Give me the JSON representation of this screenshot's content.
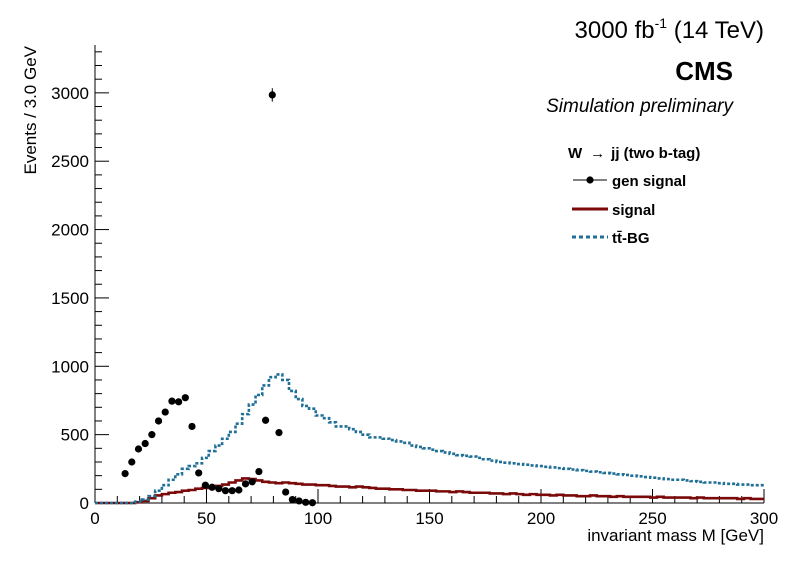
{
  "chart_data": {
    "type": "line",
    "lumi_label": {
      "main": "3000 fb",
      "sup": "-1",
      "energy": "(14 TeV)"
    },
    "experiment": "CMS",
    "subtitle": "Simulation preliminary",
    "legend_header": {
      "pre": "W",
      "arrow": "→",
      "post": "jj (two b-tag)"
    },
    "xlabel": "invariant mass M [GeV]",
    "ylabel": "Events / 3.0 GeV",
    "xlim": [
      0,
      300
    ],
    "ylim": [
      0,
      3350
    ],
    "x_ticks": [
      0,
      50,
      100,
      150,
      200,
      250,
      300
    ],
    "y_ticks": [
      0,
      500,
      1000,
      1500,
      2000,
      2500,
      3000
    ],
    "bin_width": 3,
    "legend_position": "top-right",
    "colors": {
      "gen": "#000000",
      "signal": "#7a0a0a",
      "ttbar": "#1f6f96"
    },
    "series": [
      {
        "name": "gen signal",
        "style": "markers-with-errors",
        "x": [
          13.5,
          16.5,
          19.5,
          22.5,
          25.5,
          28.5,
          31.5,
          34.5,
          37.5,
          40.5,
          43.5,
          46.5,
          49.5,
          52.5,
          55.5,
          58.5,
          61.5,
          64.5,
          67.5,
          70.5,
          73.5,
          76.5,
          79.5,
          82.5,
          85.5,
          88.5,
          91.5,
          94.5,
          97.5
        ],
        "y": [
          215,
          300,
          395,
          435,
          500,
          600,
          665,
          745,
          740,
          770,
          560,
          220,
          130,
          115,
          105,
          90,
          90,
          95,
          140,
          155,
          230,
          605,
          2985,
          515,
          80,
          25,
          15,
          5,
          2
        ]
      },
      {
        "name": "signal",
        "style": "step-solid",
        "bin_edges": [
          0,
          300
        ],
        "values": [
          0,
          0,
          0,
          0,
          0,
          0,
          5,
          15,
          35,
          55,
          65,
          75,
          80,
          90,
          95,
          105,
          110,
          115,
          125,
          135,
          150,
          165,
          180,
          175,
          165,
          155,
          150,
          145,
          150,
          145,
          140,
          135,
          135,
          130,
          130,
          125,
          120,
          120,
          115,
          120,
          115,
          110,
          105,
          105,
          100,
          100,
          95,
          95,
          90,
          90,
          90,
          85,
          85,
          80,
          85,
          80,
          75,
          75,
          75,
          70,
          70,
          65,
          70,
          65,
          60,
          65,
          60,
          60,
          55,
          60,
          55,
          55,
          50,
          50,
          55,
          50,
          50,
          45,
          50,
          45,
          45,
          45,
          45,
          40,
          45,
          40,
          40,
          40,
          40,
          35,
          40,
          35,
          35,
          35,
          35,
          35,
          30,
          35,
          30,
          30
        ]
      },
      {
        "name": "tt̄-BG",
        "style": "step-dashed",
        "bin_edges": [
          0,
          300
        ],
        "values": [
          0,
          0,
          0,
          0,
          0,
          0,
          10,
          25,
          50,
          90,
          130,
          170,
          210,
          250,
          270,
          290,
          330,
          380,
          420,
          470,
          520,
          580,
          650,
          720,
          790,
          860,
          920,
          940,
          900,
          820,
          760,
          710,
          690,
          640,
          620,
          590,
          560,
          560,
          540,
          520,
          500,
          480,
          480,
          470,
          460,
          450,
          440,
          420,
          410,
          400,
          390,
          380,
          370,
          360,
          350,
          345,
          340,
          330,
          320,
          310,
          300,
          295,
          290,
          285,
          280,
          275,
          270,
          265,
          260,
          255,
          250,
          245,
          240,
          235,
          230,
          225,
          220,
          215,
          210,
          205,
          200,
          195,
          190,
          185,
          180,
          175,
          170,
          170,
          165,
          160,
          155,
          150,
          150,
          145,
          140,
          140,
          135,
          135,
          130,
          130
        ]
      }
    ]
  }
}
